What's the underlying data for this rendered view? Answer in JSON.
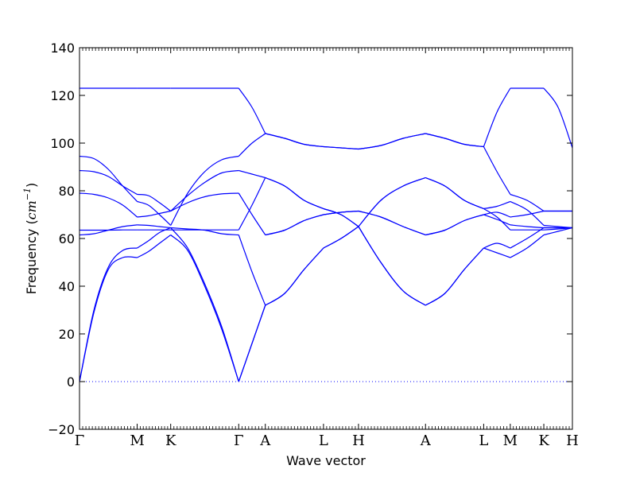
{
  "chart_data": {
    "type": "line",
    "xlabel": "Wave vector",
    "ylabel": "Frequency",
    "ylabel_unit_base": "cm",
    "ylabel_unit_exp": "−1",
    "ylim": [
      -20,
      140
    ],
    "yticks": [
      "−20",
      "0",
      "20",
      "40",
      "60",
      "80",
      "100",
      "120",
      "140"
    ],
    "q_points": [
      {
        "label": "Γ",
        "x": 0.0
      },
      {
        "label": "M",
        "x": 0.117
      },
      {
        "label": "K",
        "x": 0.185
      },
      {
        "label": "Γ",
        "x": 0.323
      },
      {
        "label": "A",
        "x": 0.377
      },
      {
        "label": "L",
        "x": 0.495
      },
      {
        "label": "H",
        "x": 0.566
      },
      {
        "label": "A",
        "x": 0.702
      },
      {
        "label": "L",
        "x": 0.82
      },
      {
        "label": "M",
        "x": 0.874
      },
      {
        "label": "K",
        "x": 0.942
      },
      {
        "label": "H",
        "x": 1.0
      }
    ],
    "zero_line": true,
    "line_color": "#0000ff",
    "segments": [
      {
        "x": [
          0.0,
          0.117
        ],
        "bands": [
          [
            0,
            29,
            47,
            52,
            52
          ],
          [
            0,
            30,
            48,
            55,
            56
          ],
          [
            61.5,
            62,
            63.5,
            65,
            65.7
          ],
          [
            63.5,
            63.5,
            63.5,
            63.6,
            63.6
          ],
          [
            79,
            78.5,
            77,
            74,
            69
          ],
          [
            88.5,
            88,
            86,
            82,
            78.5
          ],
          [
            94.5,
            93.5,
            89,
            82,
            75.5
          ],
          [
            123,
            123,
            123,
            123,
            123
          ]
        ]
      },
      {
        "x": [
          0.117,
          0.185
        ],
        "bands": [
          [
            52,
            54.5,
            58,
            61.5
          ],
          [
            56,
            59,
            62.5,
            64.5
          ],
          [
            65.7,
            65.5,
            65,
            64.5
          ],
          [
            63.6,
            63.6,
            63.6,
            63.6
          ],
          [
            69,
            69.5,
            70.5,
            71.5
          ],
          [
            78.5,
            78,
            75,
            71.5
          ],
          [
            75.5,
            74,
            70,
            65.5
          ],
          [
            123,
            123,
            123,
            123
          ]
        ]
      },
      {
        "x": [
          0.185,
          0.323
        ],
        "bands": [
          [
            61.5,
            55,
            40,
            22,
            0
          ],
          [
            64.5,
            56,
            41,
            23,
            0
          ],
          [
            64.5,
            64,
            63.5,
            62,
            61.5
          ],
          [
            63.6,
            63.6,
            63.6,
            63.6,
            63.6
          ],
          [
            71.5,
            75,
            77.5,
            78.7,
            79
          ],
          [
            71.5,
            78,
            83.5,
            87.5,
            88.5
          ],
          [
            65.5,
            79,
            88,
            93,
            94.5
          ],
          [
            123,
            123,
            123,
            123,
            123
          ]
        ]
      },
      {
        "x": [
          0.323,
          0.377
        ],
        "bands": [
          [
            0,
            16,
            32
          ],
          [
            0,
            16,
            32
          ],
          [
            61.5,
            46,
            32
          ],
          [
            63.6,
            74,
            85.5
          ],
          [
            79,
            70,
            61.5
          ],
          [
            88.5,
            87,
            85.5
          ],
          [
            94.5,
            100,
            104
          ],
          [
            123,
            115,
            104
          ]
        ]
      },
      {
        "x": [
          0.377,
          0.495
        ],
        "bands": [
          [
            32,
            37,
            47,
            56
          ],
          [
            32,
            37,
            47,
            56
          ],
          [
            61.5,
            63.5,
            67.5,
            70
          ],
          [
            61.5,
            63.5,
            67.5,
            70
          ],
          [
            85.5,
            82,
            76,
            72.5
          ],
          [
            85.5,
            82,
            76,
            72.5
          ],
          [
            104,
            102,
            99.5,
            98.5
          ],
          [
            104,
            102,
            99.5,
            98.5
          ]
        ]
      },
      {
        "x": [
          0.495,
          0.566
        ],
        "bands": [
          [
            56,
            60,
            65
          ],
          [
            56,
            60,
            65
          ],
          [
            70,
            71,
            71.5
          ],
          [
            70,
            71,
            71.5
          ],
          [
            72.5,
            70,
            65
          ],
          [
            72.5,
            70,
            65
          ],
          [
            98.5,
            98,
            97.5
          ],
          [
            98.5,
            98,
            97.5
          ]
        ]
      },
      {
        "x": [
          0.566,
          0.702
        ],
        "bands": [
          [
            65,
            76,
            82,
            85.5
          ],
          [
            65,
            76,
            82,
            85.5
          ],
          [
            71.5,
            69,
            65,
            61.5
          ],
          [
            71.5,
            69,
            65,
            61.5
          ],
          [
            65,
            50,
            38,
            32
          ],
          [
            65,
            50,
            38,
            32
          ],
          [
            97.5,
            99,
            102,
            104
          ],
          [
            97.5,
            99,
            102,
            104
          ]
        ]
      },
      {
        "x": [
          0.702,
          0.82
        ],
        "bands": [
          [
            85.5,
            82,
            76,
            72.5
          ],
          [
            85.5,
            82,
            76,
            72.5
          ],
          [
            61.5,
            63.5,
            67.5,
            70
          ],
          [
            61.5,
            63.5,
            67.5,
            70
          ],
          [
            32,
            37,
            47,
            56
          ],
          [
            32,
            37,
            47,
            56
          ],
          [
            104,
            102,
            99.5,
            98.5
          ],
          [
            104,
            102,
            99.5,
            98.5
          ]
        ]
      },
      {
        "x": [
          0.82,
          0.874
        ],
        "bands": [
          [
            72.5,
            69,
            63.6
          ],
          [
            72.5,
            73.5,
            75.5
          ],
          [
            70,
            68,
            65.7
          ],
          [
            70,
            71,
            69
          ],
          [
            56,
            54,
            52
          ],
          [
            56,
            58,
            56
          ],
          [
            98.5,
            88,
            78.5
          ],
          [
            98.5,
            113,
            123
          ]
        ]
      },
      {
        "x": [
          0.874,
          0.942
        ],
        "bands": [
          [
            63.6,
            63.6,
            63.6
          ],
          [
            75.5,
            72,
            65.5
          ],
          [
            65.7,
            65,
            64.5
          ],
          [
            69,
            70,
            71.5
          ],
          [
            52,
            56,
            61.5
          ],
          [
            56,
            60,
            64.5
          ],
          [
            78.5,
            76,
            71.5
          ],
          [
            123,
            123,
            123
          ]
        ]
      },
      {
        "x": [
          0.942,
          1.0
        ],
        "bands": [
          [
            63.6,
            64,
            64.5
          ],
          [
            65.5,
            65,
            64.5
          ],
          [
            64.5,
            64.5,
            64.5
          ],
          [
            71.5,
            71.5,
            71.5
          ],
          [
            61.5,
            63,
            64.5
          ],
          [
            64.5,
            64.5,
            64.5
          ],
          [
            71.5,
            71.5,
            71.5
          ],
          [
            123,
            115,
            98
          ]
        ]
      }
    ]
  }
}
